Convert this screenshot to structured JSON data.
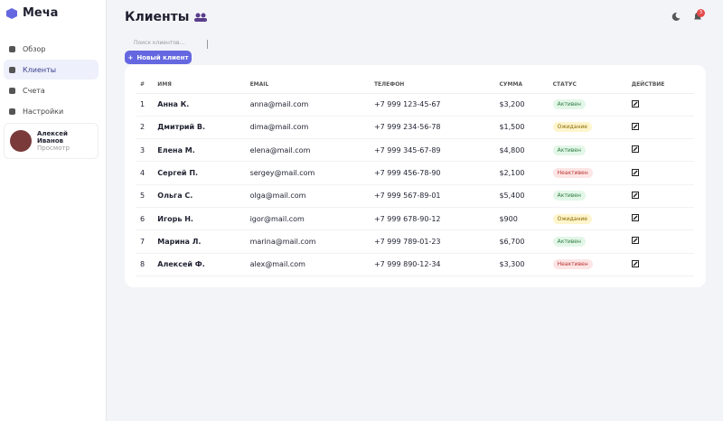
{
  "sidebar": {
    "logo": "Меча",
    "nav": [
      "Обзор",
      "Клиенты",
      "Счета",
      "Настройки"
    ],
    "user": {
      "name": "Алексей Иванов",
      "subtitle": "Просмотр"
    }
  },
  "header": {
    "title": "Клиенты",
    "search_placeholder": "Поиск клиентов...",
    "new_button": "Новый клиент",
    "notifications": "3"
  },
  "table": {
    "columns": [
      "#",
      "ИМЯ",
      "EMAIL",
      "ТЕЛЕФОН",
      "СУММА",
      "СТАТУС",
      "ДЕЙСТВИЕ"
    ],
    "rows": [
      [
        "1",
        "Анна К.",
        "anna@mail.com",
        "+7 999 123-45-67",
        "$3,200",
        "Активен"
      ],
      [
        "2",
        "Дмитрий В.",
        "dima@mail.com",
        "+7 999 234-56-78",
        "$1,500",
        "Ожидание"
      ],
      [
        "3",
        "Елена М.",
        "elena@mail.com",
        "+7 999 345-67-89",
        "$4,800",
        "Активен"
      ],
      [
        "4",
        "Сергей П.",
        "sergey@mail.com",
        "+7 999 456-78-90",
        "$2,100",
        "Неактивен"
      ],
      [
        "5",
        "Ольга С.",
        "olga@mail.com",
        "+7 999 567-89-01",
        "$5,400",
        "Активен"
      ],
      [
        "6",
        "Игорь Н.",
        "igor@mail.com",
        "+7 999 678-90-12",
        "$900",
        "Ожидание"
      ],
      [
        "7",
        "Марина Л.",
        "marina@mail.com",
        "+7 999 789-01-23",
        "$6,700",
        "Активен"
      ],
      [
        "8",
        "Алексей Ф.",
        "alex@mail.com",
        "+7 999 890-12-34",
        "$3,300",
        "Неактивен"
      ]
    ]
  }
}
